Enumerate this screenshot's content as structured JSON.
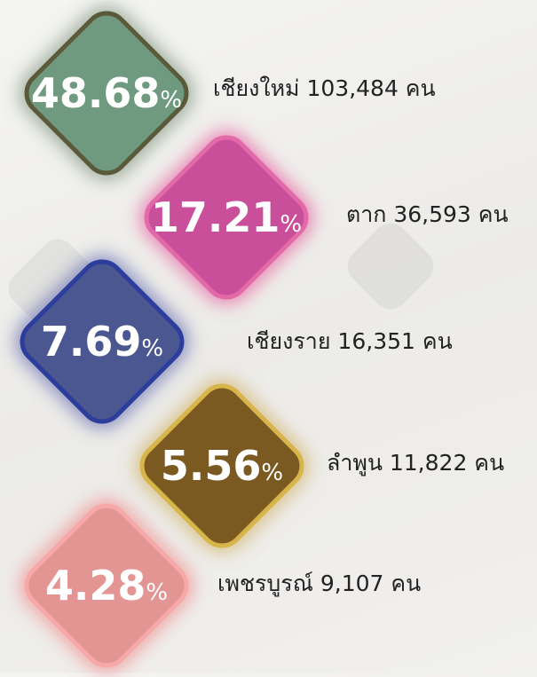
{
  "items": [
    {
      "percent": "48.68",
      "unit": "%",
      "label": "เชียงใหม่ 103,484 คน"
    },
    {
      "percent": "17.21",
      "unit": "%",
      "label": "ตาก  36,593 คน"
    },
    {
      "percent": "7.69",
      "unit": "%",
      "label": "เชียงราย 16,351 คน"
    },
    {
      "percent": "5.56",
      "unit": "%",
      "label": "ลำพูน 11,822 คน"
    },
    {
      "percent": "4.28",
      "unit": "%",
      "label": "เพชรบูรณ์  9,107  คน"
    }
  ]
}
